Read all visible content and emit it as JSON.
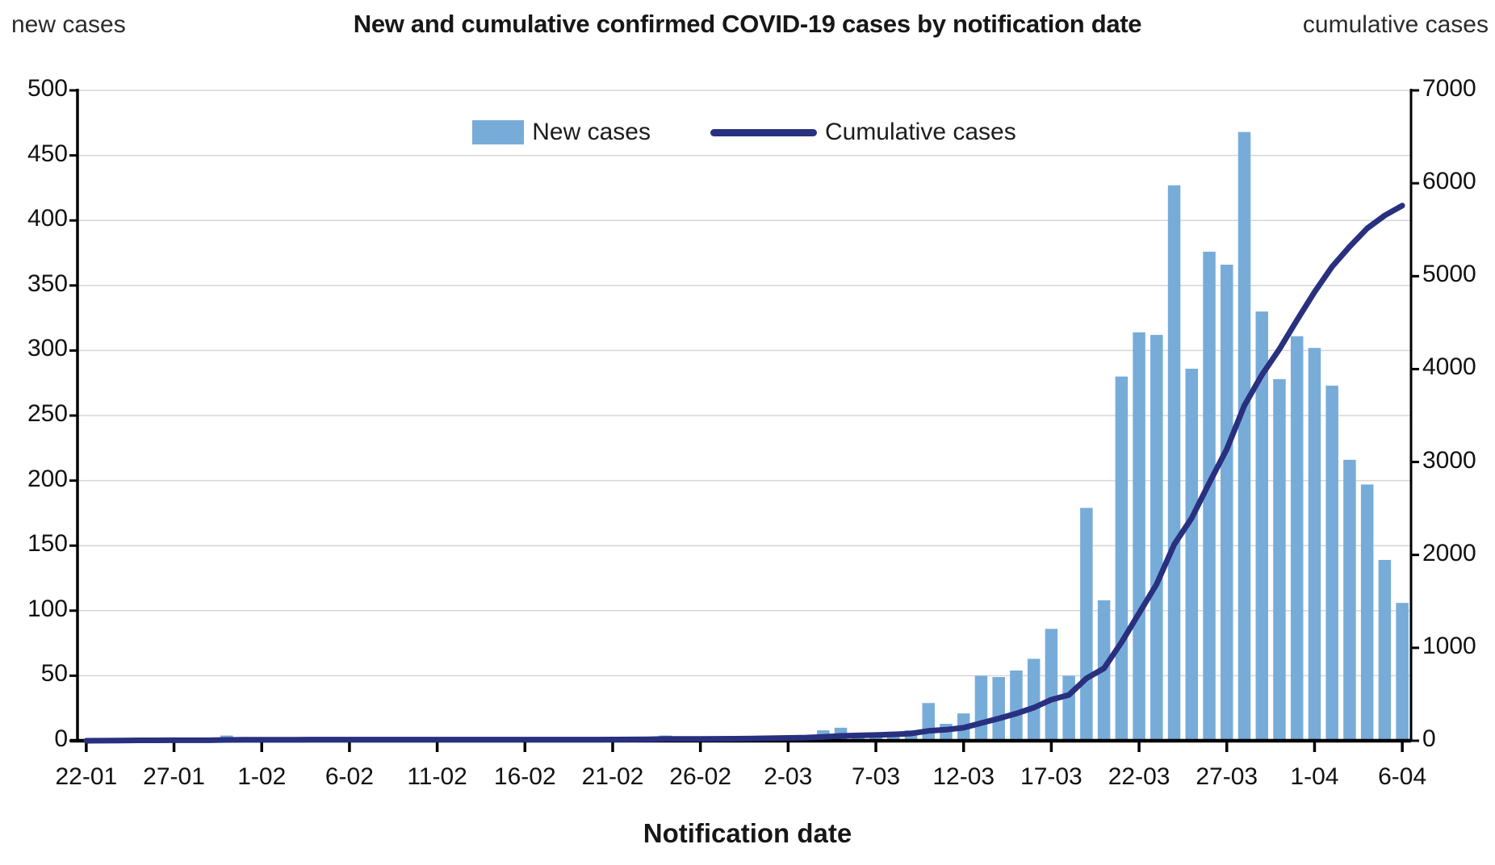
{
  "header": {
    "title": "New and cumulative confirmed COVID-19 cases by notification date",
    "left_axis_caption": "new cases",
    "right_axis_caption": "cumulative cases"
  },
  "legend": {
    "new_cases_label": "New cases",
    "cumulative_label": "Cumulative cases"
  },
  "x_axis": {
    "title": "Notification date"
  },
  "colors": {
    "bar": "#77acd9",
    "line": "#28307f",
    "gridline": "#d6d6d6",
    "axis": "#000000",
    "text": "#111111"
  },
  "chart_data": {
    "type": "bar",
    "title": "New and cumulative confirmed COVID-19 cases by notification date",
    "xlabel": "Notification date",
    "ylabel_left": "new cases",
    "ylabel_right": "cumulative cases",
    "grid": "horizontal",
    "legend_position": "top-center",
    "left_axis": {
      "min": 0,
      "max": 500,
      "step": 50
    },
    "right_axis": {
      "min": 0,
      "max": 7000,
      "step": 1000
    },
    "x_tick_labels": [
      "22-01",
      "27-01",
      "1-02",
      "6-02",
      "11-02",
      "16-02",
      "21-02",
      "26-02",
      "2-03",
      "7-03",
      "12-03",
      "17-03",
      "22-03",
      "27-03",
      "1-04",
      "6-04"
    ],
    "x_tick_every": 5,
    "categories": [
      "22-01",
      "23-01",
      "24-01",
      "25-01",
      "26-01",
      "27-01",
      "28-01",
      "29-01",
      "30-01",
      "31-01",
      "1-02",
      "2-02",
      "3-02",
      "4-02",
      "5-02",
      "6-02",
      "7-02",
      "8-02",
      "9-02",
      "10-02",
      "11-02",
      "12-02",
      "13-02",
      "14-02",
      "15-02",
      "16-02",
      "17-02",
      "18-02",
      "19-02",
      "20-02",
      "21-02",
      "22-02",
      "23-02",
      "24-02",
      "25-02",
      "26-02",
      "27-02",
      "28-02",
      "29-02",
      "1-03",
      "2-03",
      "3-03",
      "4-03",
      "5-03",
      "6-03",
      "7-03",
      "8-03",
      "9-03",
      "10-03",
      "11-03",
      "12-03",
      "13-03",
      "14-03",
      "15-03",
      "16-03",
      "17-03",
      "18-03",
      "19-03",
      "20-03",
      "21-03",
      "22-03",
      "23-03",
      "24-03",
      "25-03",
      "26-03",
      "27-03",
      "28-03",
      "29-03",
      "30-03",
      "31-03",
      "1-04",
      "2-04",
      "3-04",
      "4-04",
      "5-04",
      "6-04"
    ],
    "series": [
      {
        "name": "New cases",
        "type": "bar",
        "axis": "left",
        "values": [
          0,
          1,
          2,
          1,
          0,
          1,
          0,
          0,
          4,
          1,
          1,
          0,
          0,
          1,
          0,
          0,
          0,
          0,
          0,
          0,
          0,
          0,
          0,
          0,
          0,
          0,
          0,
          0,
          0,
          0,
          1,
          1,
          1,
          4,
          1,
          0,
          1,
          1,
          2,
          3,
          3,
          4,
          8,
          10,
          5,
          5,
          7,
          8,
          29,
          13,
          21,
          50,
          49,
          54,
          63,
          86,
          50,
          179,
          108,
          280,
          314,
          312,
          427,
          286,
          376,
          366,
          468,
          330,
          278,
          311,
          302,
          273,
          216,
          197,
          139,
          106
        ]
      },
      {
        "name": "Cumulative cases",
        "type": "line",
        "axis": "right",
        "values": [
          0,
          1,
          3,
          4,
          4,
          5,
          5,
          5,
          9,
          10,
          11,
          11,
          11,
          12,
          12,
          12,
          12,
          12,
          12,
          12,
          12,
          12,
          12,
          12,
          12,
          12,
          12,
          12,
          12,
          12,
          13,
          14,
          15,
          19,
          20,
          20,
          21,
          22,
          24,
          27,
          30,
          34,
          42,
          52,
          57,
          62,
          69,
          77,
          106,
          119,
          140,
          190,
          239,
          293,
          356,
          442,
          492,
          671,
          779,
          1059,
          1373,
          1685,
          2112,
          2398,
          2774,
          3140,
          3608,
          3938,
          4216,
          4527,
          4829,
          5102,
          5318,
          5515,
          5654,
          5760
        ]
      }
    ]
  }
}
